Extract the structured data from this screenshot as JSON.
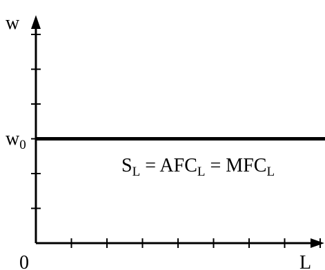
{
  "chart_data": {
    "type": "line",
    "ylabel": "w",
    "xlabel": "L",
    "origin_label": "0",
    "y_level_label": "w",
    "y_level_subscript": "0",
    "xlim": [
      0,
      8
    ],
    "ylim": [
      0,
      6
    ],
    "x_ticks": [
      1,
      2,
      3,
      4,
      5,
      6,
      7,
      8
    ],
    "y_ticks": [
      1,
      2,
      3,
      4,
      5,
      6
    ],
    "series": [
      {
        "values": [
          [
            0,
            3
          ],
          [
            8.5,
            3
          ]
        ]
      }
    ],
    "annotation": {
      "parts": [
        {
          "text": "S",
          "sub": "L"
        },
        {
          "text": " = AFC",
          "sub": "L"
        },
        {
          "text": " = MFC",
          "sub": "L"
        }
      ]
    }
  }
}
